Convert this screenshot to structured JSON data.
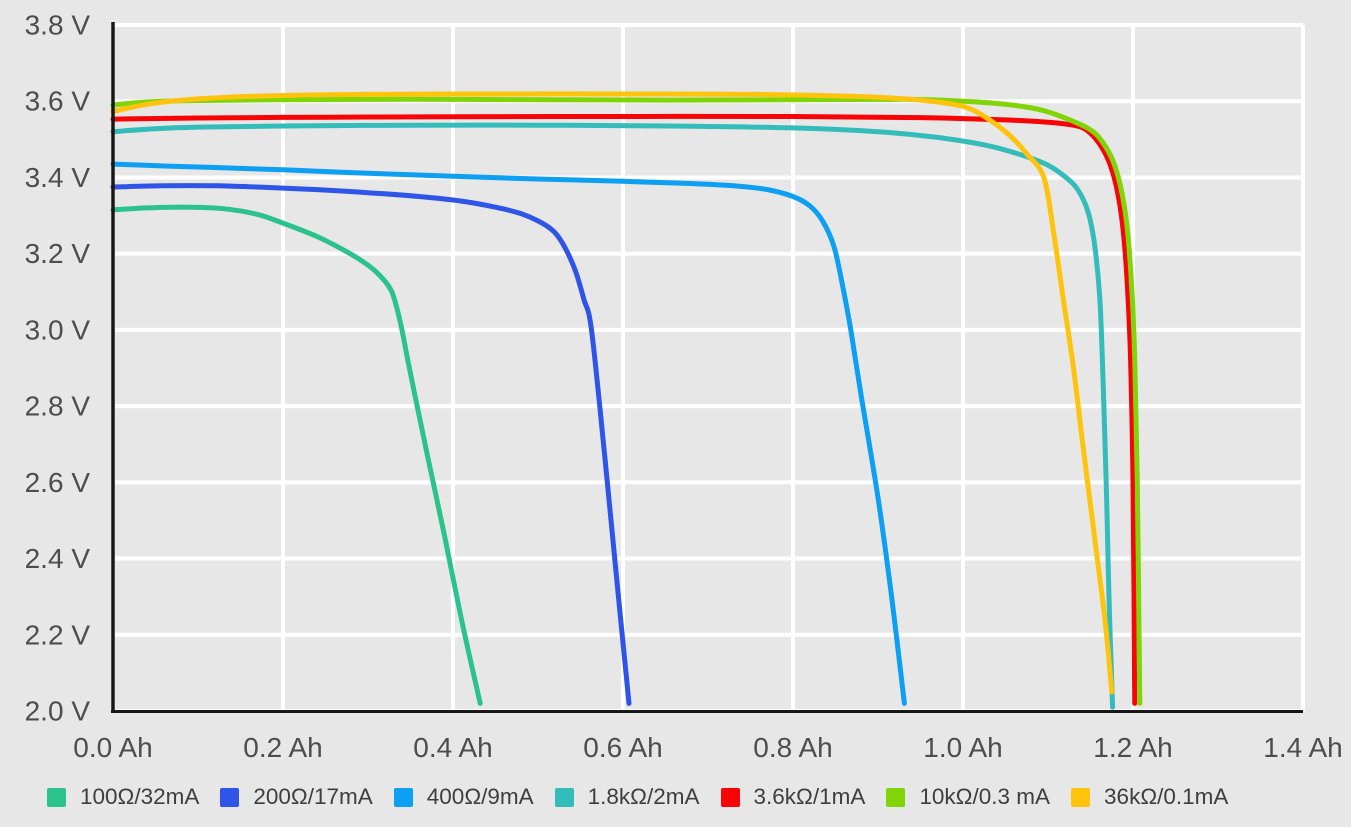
{
  "page": {
    "background_color": "#e7e7e7",
    "title": ""
  },
  "style": {
    "gridline_color": "#ffffff",
    "axis_color": "#171717",
    "tick_label_color": "#4d4d4d",
    "legend_text_color": "#3e3e3e"
  },
  "chart_data": {
    "type": "line",
    "title": "",
    "xlabel": "",
    "ylabel": "",
    "x_unit": "Ah",
    "y_unit": "V",
    "xlim": [
      0.0,
      1.4
    ],
    "ylim": [
      2.0,
      3.8
    ],
    "x_ticks": [
      0.0,
      0.2,
      0.4,
      0.6,
      0.8,
      1.0,
      1.2,
      1.4
    ],
    "y_ticks": [
      2.0,
      2.2,
      2.4,
      2.6,
      2.8,
      3.0,
      3.2,
      3.4,
      3.6,
      3.8
    ],
    "x_tick_labels": [
      "0.0 Ah",
      "0.2 Ah",
      "0.4 Ah",
      "0.6 Ah",
      "0.8 Ah",
      "1.0 Ah",
      "1.2 Ah",
      "1.4 Ah"
    ],
    "y_tick_labels": [
      "2.0 V",
      "2.2 V",
      "2.4 V",
      "2.6 V",
      "2.8 V",
      "3.0 V",
      "3.2 V",
      "3.4 V",
      "3.6 V",
      "3.8 V"
    ],
    "grid": true,
    "legend_position": "bottom",
    "series": [
      {
        "name": "100Ω/32mA",
        "slug": "100ohm-32ma",
        "color": "#2bc28e",
        "points": [
          [
            0,
            3.315
          ],
          [
            0.04,
            3.32
          ],
          [
            0.09,
            3.322
          ],
          [
            0.13,
            3.318
          ],
          [
            0.17,
            3.303
          ],
          [
            0.2,
            3.28
          ],
          [
            0.24,
            3.245
          ],
          [
            0.275,
            3.205
          ],
          [
            0.3,
            3.17
          ],
          [
            0.315,
            3.14
          ],
          [
            0.328,
            3.1
          ],
          [
            0.338,
            3.02
          ],
          [
            0.346,
            2.93
          ],
          [
            0.355,
            2.83
          ],
          [
            0.37,
            2.67
          ],
          [
            0.39,
            2.46
          ],
          [
            0.41,
            2.24
          ],
          [
            0.432,
            2.02
          ]
        ]
      },
      {
        "name": "200Ω/17mA",
        "slug": "200ohm-17ma",
        "color": "#2f54e8",
        "points": [
          [
            0,
            3.375
          ],
          [
            0.06,
            3.378
          ],
          [
            0.12,
            3.378
          ],
          [
            0.18,
            3.374
          ],
          [
            0.24,
            3.368
          ],
          [
            0.3,
            3.36
          ],
          [
            0.36,
            3.35
          ],
          [
            0.41,
            3.338
          ],
          [
            0.45,
            3.322
          ],
          [
            0.48,
            3.305
          ],
          [
            0.505,
            3.28
          ],
          [
            0.52,
            3.255
          ],
          [
            0.532,
            3.215
          ],
          [
            0.544,
            3.155
          ],
          [
            0.554,
            3.08
          ],
          [
            0.563,
            3.0
          ],
          [
            0.578,
            2.68
          ],
          [
            0.592,
            2.36
          ],
          [
            0.607,
            2.02
          ]
        ]
      },
      {
        "name": "400Ω/9mA",
        "slug": "400ohm-9ma",
        "color": "#0d9ff2",
        "points": [
          [
            0,
            3.435
          ],
          [
            0.06,
            3.43
          ],
          [
            0.12,
            3.426
          ],
          [
            0.2,
            3.42
          ],
          [
            0.3,
            3.411
          ],
          [
            0.4,
            3.403
          ],
          [
            0.5,
            3.396
          ],
          [
            0.6,
            3.39
          ],
          [
            0.68,
            3.384
          ],
          [
            0.73,
            3.378
          ],
          [
            0.77,
            3.368
          ],
          [
            0.8,
            3.35
          ],
          [
            0.82,
            3.325
          ],
          [
            0.835,
            3.285
          ],
          [
            0.848,
            3.22
          ],
          [
            0.858,
            3.12
          ],
          [
            0.868,
            3.0
          ],
          [
            0.88,
            2.83
          ],
          [
            0.9,
            2.56
          ],
          [
            0.916,
            2.3
          ],
          [
            0.931,
            2.02
          ]
        ]
      },
      {
        "name": "1.8kΩ/2mA",
        "slug": "1k8ohm-2ma",
        "color": "#34bcba",
        "points": [
          [
            0,
            3.52
          ],
          [
            0.05,
            3.528
          ],
          [
            0.1,
            3.532
          ],
          [
            0.2,
            3.535
          ],
          [
            0.35,
            3.537
          ],
          [
            0.5,
            3.537
          ],
          [
            0.65,
            3.535
          ],
          [
            0.8,
            3.53
          ],
          [
            0.9,
            3.52
          ],
          [
            0.97,
            3.505
          ],
          [
            1.03,
            3.483
          ],
          [
            1.07,
            3.458
          ],
          [
            1.1,
            3.432
          ],
          [
            1.12,
            3.402
          ],
          [
            1.135,
            3.368
          ],
          [
            1.147,
            3.31
          ],
          [
            1.155,
            3.22
          ],
          [
            1.161,
            3.08
          ],
          [
            1.165,
            2.85
          ],
          [
            1.169,
            2.55
          ],
          [
            1.172,
            2.28
          ],
          [
            1.176,
            2.01
          ]
        ]
      },
      {
        "name": "3.6kΩ/1mA",
        "slug": "3k6ohm-1ma",
        "color": "#f80406",
        "points": [
          [
            0,
            3.553
          ],
          [
            0.1,
            3.556
          ],
          [
            0.25,
            3.558
          ],
          [
            0.4,
            3.559
          ],
          [
            0.6,
            3.56
          ],
          [
            0.8,
            3.56
          ],
          [
            0.95,
            3.557
          ],
          [
            1.05,
            3.551
          ],
          [
            1.1,
            3.545
          ],
          [
            1.13,
            3.537
          ],
          [
            1.145,
            3.525
          ],
          [
            1.16,
            3.49
          ],
          [
            1.172,
            3.44
          ],
          [
            1.181,
            3.37
          ],
          [
            1.188,
            3.27
          ],
          [
            1.193,
            3.13
          ],
          [
            1.197,
            2.93
          ],
          [
            1.2,
            2.6
          ],
          [
            1.202,
            2.02
          ]
        ]
      },
      {
        "name": "10kΩ/0.3 mA",
        "slug": "10kohm-0p3ma",
        "color": "#80d408",
        "points": [
          [
            0,
            3.59
          ],
          [
            0.04,
            3.598
          ],
          [
            0.1,
            3.602
          ],
          [
            0.2,
            3.604
          ],
          [
            0.35,
            3.605
          ],
          [
            0.5,
            3.604
          ],
          [
            0.65,
            3.603
          ],
          [
            0.8,
            3.604
          ],
          [
            0.93,
            3.605
          ],
          [
            1.0,
            3.6
          ],
          [
            1.05,
            3.592
          ],
          [
            1.09,
            3.578
          ],
          [
            1.12,
            3.556
          ],
          [
            1.15,
            3.525
          ],
          [
            1.165,
            3.49
          ],
          [
            1.177,
            3.44
          ],
          [
            1.186,
            3.37
          ],
          [
            1.193,
            3.27
          ],
          [
            1.198,
            3.13
          ],
          [
            1.202,
            2.93
          ],
          [
            1.205,
            2.6
          ],
          [
            1.208,
            2.02
          ]
        ]
      },
      {
        "name": "36kΩ/0.1mA",
        "slug": "36kohm-0p1ma",
        "color": "#fec30d",
        "points": [
          [
            0,
            3.573
          ],
          [
            0.03,
            3.588
          ],
          [
            0.06,
            3.598
          ],
          [
            0.1,
            3.606
          ],
          [
            0.15,
            3.612
          ],
          [
            0.22,
            3.616
          ],
          [
            0.3,
            3.618
          ],
          [
            0.45,
            3.619
          ],
          [
            0.6,
            3.619
          ],
          [
            0.75,
            3.618
          ],
          [
            0.85,
            3.614
          ],
          [
            0.92,
            3.608
          ],
          [
            0.97,
            3.598
          ],
          [
            1.005,
            3.583
          ],
          [
            1.03,
            3.553
          ],
          [
            1.055,
            3.51
          ],
          [
            1.075,
            3.462
          ],
          [
            1.095,
            3.4
          ],
          [
            1.107,
            3.25
          ],
          [
            1.118,
            3.08
          ],
          [
            1.13,
            2.9
          ],
          [
            1.142,
            2.68
          ],
          [
            1.158,
            2.4
          ],
          [
            1.168,
            2.22
          ],
          [
            1.175,
            2.05
          ]
        ]
      }
    ]
  }
}
